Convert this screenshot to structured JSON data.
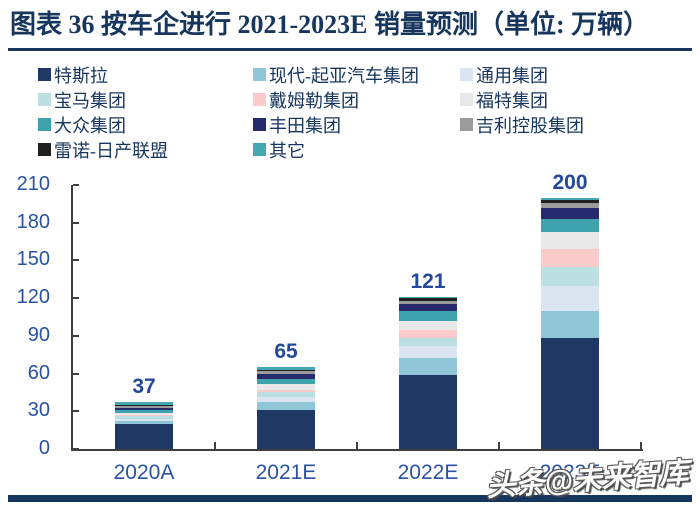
{
  "title": "图表 36 按车企进行 2021-2023E 销量预测（单位: 万辆）",
  "watermark": "头条@未来智库",
  "colors": {
    "title_navy": "#17365D",
    "axis_text_blue": "#2A52A4",
    "axis_line": "#3f3f3f",
    "footer_bar": "#17365D"
  },
  "chart_data": {
    "type": "bar",
    "stacked": true,
    "title": "按车企进行2021-2023E销量预测",
    "unit": "万辆",
    "categories": [
      "2020A",
      "2021E",
      "2022E",
      "2023E"
    ],
    "totals": [
      37,
      65,
      121,
      200
    ],
    "series": [
      {
        "name": "特斯拉",
        "color": "#1F3864",
        "values": [
          20,
          31,
          59,
          88
        ]
      },
      {
        "name": "现代-起亚汽车集团",
        "color": "#8FC6D8",
        "values": [
          2,
          6,
          13,
          22
        ]
      },
      {
        "name": "通用集团",
        "color": "#DBE5F1",
        "values": [
          2,
          4,
          10,
          20
        ]
      },
      {
        "name": "宝马集团",
        "color": "#BCDFE2",
        "values": [
          2,
          4,
          6,
          15
        ]
      },
      {
        "name": "戴姆勒集团",
        "color": "#FBCACB",
        "values": [
          1,
          2,
          7,
          14
        ]
      },
      {
        "name": "福特集团",
        "color": "#E9E9E9",
        "values": [
          2,
          5,
          7,
          14
        ]
      },
      {
        "name": "大众集团",
        "color": "#3FA3AD",
        "values": [
          2,
          4,
          8,
          10
        ]
      },
      {
        "name": "丰田集团",
        "color": "#272A6D",
        "values": [
          2,
          4,
          5,
          9
        ]
      },
      {
        "name": "吉利控股集团",
        "color": "#9B9B9B",
        "values": [
          1,
          2,
          3,
          4
        ]
      },
      {
        "name": "雷诺-日产联盟",
        "color": "#1F1F1F",
        "values": [
          1,
          1,
          2,
          2
        ]
      },
      {
        "name": "其它",
        "color": "#45A8B2",
        "values": [
          2,
          2,
          1,
          2
        ]
      }
    ],
    "xlabel": "",
    "ylabel": "",
    "ylim": [
      0,
      210
    ],
    "yticks": [
      0,
      30,
      60,
      90,
      120,
      150,
      180,
      210
    ],
    "grid": false,
    "legend_position": "top"
  }
}
